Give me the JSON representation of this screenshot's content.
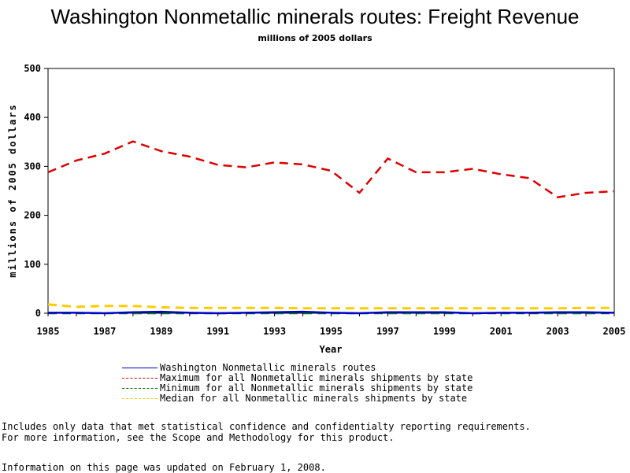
{
  "chart_data": {
    "type": "line",
    "title": "Washington Nonmetallic minerals routes: Freight Revenue",
    "subtitle": "millions of 2005 dollars",
    "xlabel": "Year",
    "ylabel": "millions of 2005 dollars",
    "xlim": [
      1985,
      2005
    ],
    "ylim": [
      0,
      500
    ],
    "x_ticks": [
      1985,
      1987,
      1989,
      1991,
      1993,
      1995,
      1997,
      1999,
      2001,
      2003,
      2005
    ],
    "y_ticks": [
      0,
      100,
      200,
      300,
      400,
      500
    ],
    "grid": false,
    "legend_position": "bottom",
    "x": [
      1985,
      1986,
      1987,
      1988,
      1989,
      1990,
      1991,
      1992,
      1993,
      1994,
      1995,
      1996,
      1997,
      1998,
      1999,
      2000,
      2001,
      2002,
      2003,
      2004,
      2005
    ],
    "series": [
      {
        "name": "Washington Nonmetallic minerals routes",
        "color": "#0000cc",
        "dash": "solid",
        "values": [
          1,
          1,
          0,
          2,
          3,
          1,
          0,
          1,
          2,
          3,
          1,
          0,
          2,
          2,
          2,
          0,
          1,
          1,
          2,
          2,
          1
        ]
      },
      {
        "name": "Maximum for all Nonmetallic minerals shipments by state",
        "color": "#dd0000",
        "dash": "dashed",
        "values": [
          288,
          312,
          326,
          351,
          331,
          320,
          303,
          298,
          308,
          304,
          291,
          246,
          316,
          288,
          288,
          295,
          284,
          276,
          237,
          246,
          249
        ]
      },
      {
        "name": "Minimum for all Nonmetallic minerals shipments by state",
        "color": "#007700",
        "dash": "dashed",
        "values": [
          0,
          0,
          0,
          0,
          0,
          0,
          0,
          0,
          0,
          0,
          0,
          0,
          0,
          0,
          0,
          0,
          0,
          0,
          0,
          0,
          0
        ]
      },
      {
        "name": "Median for all Nonmetallic minerals shipments by state",
        "color": "#ffcc00",
        "dash": "dashed",
        "values": [
          18,
          13,
          15,
          15,
          12,
          11,
          11,
          11,
          11,
          10,
          10,
          10,
          10,
          10,
          10,
          10,
          10,
          10,
          10,
          11,
          11
        ]
      }
    ]
  },
  "notes": {
    "line1": "Includes only data that met statistical confidence and confidentialty reporting requirements.",
    "line2": "For more information, see the Scope and Methodology for this product.",
    "updated": "Information on this page was updated on February 1, 2008."
  }
}
